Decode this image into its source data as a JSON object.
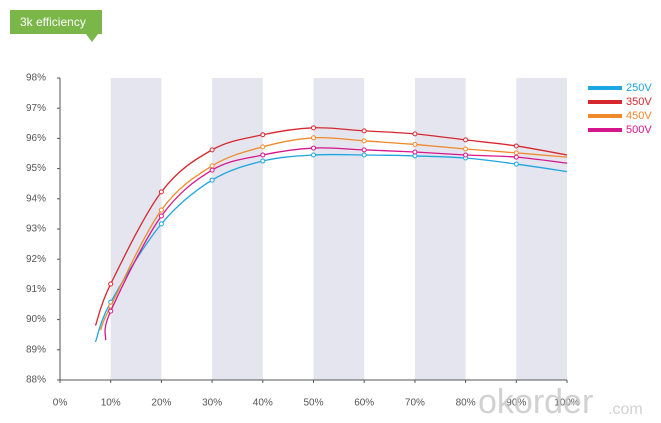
{
  "chart_data": {
    "type": "line",
    "title": "3k efficiency",
    "xlim": [
      0,
      100
    ],
    "ylim": [
      88,
      98
    ],
    "xticks": [
      {
        "value": 0,
        "label": "0%"
      },
      {
        "value": 10,
        "label": "10%"
      },
      {
        "value": 20,
        "label": "20%"
      },
      {
        "value": 30,
        "label": "30%"
      },
      {
        "value": 40,
        "label": "40%"
      },
      {
        "value": 50,
        "label": "50%"
      },
      {
        "value": 60,
        "label": "60%"
      },
      {
        "value": 70,
        "label": "70%"
      },
      {
        "value": 80,
        "label": "80%"
      },
      {
        "value": 90,
        "label": "90%"
      },
      {
        "value": 100,
        "label": "100%"
      }
    ],
    "yticks": [
      {
        "value": 88,
        "label": "88%"
      },
      {
        "value": 89,
        "label": "89%"
      },
      {
        "value": 90,
        "label": "90%"
      },
      {
        "value": 91,
        "label": "91%"
      },
      {
        "value": 92,
        "label": "92%"
      },
      {
        "value": 93,
        "label": "93%"
      },
      {
        "value": 94,
        "label": "94%"
      },
      {
        "value": 95,
        "label": "95%"
      },
      {
        "value": 96,
        "label": "96%"
      },
      {
        "value": 97,
        "label": "97%"
      },
      {
        "value": 98,
        "label": "98%"
      }
    ],
    "series": [
      {
        "name": "250V",
        "color": "#1ea6e0",
        "x": [
          7,
          10,
          20,
          30,
          40,
          50,
          60,
          70,
          80,
          90,
          100
        ],
        "values": [
          89.26,
          90.58,
          93.17,
          94.62,
          95.25,
          95.45,
          95.45,
          95.42,
          95.35,
          95.15,
          94.9
        ]
      },
      {
        "name": "350V",
        "color": "#d7282f",
        "x": [
          7,
          10,
          20,
          30,
          40,
          50,
          60,
          70,
          80,
          90,
          100
        ],
        "values": [
          89.8,
          91.18,
          94.23,
          95.62,
          96.12,
          96.35,
          96.25,
          96.15,
          95.95,
          95.75,
          95.45
        ]
      },
      {
        "name": "450V",
        "color": "#ef8a2a",
        "x": [
          8,
          10,
          20,
          30,
          40,
          50,
          60,
          70,
          80,
          90,
          100
        ],
        "values": [
          89.65,
          90.45,
          93.63,
          95.09,
          95.72,
          96.02,
          95.92,
          95.8,
          95.65,
          95.52,
          95.38
        ]
      },
      {
        "name": "500V",
        "color": "#d6168c",
        "x": [
          9,
          10,
          20,
          30,
          40,
          50,
          60,
          70,
          80,
          90,
          100
        ],
        "values": [
          89.32,
          90.28,
          93.43,
          94.95,
          95.45,
          95.68,
          95.62,
          95.55,
          95.45,
          95.38,
          95.18
        ]
      }
    ],
    "watermark": "okorder",
    "watermark_suffix": ".com"
  }
}
